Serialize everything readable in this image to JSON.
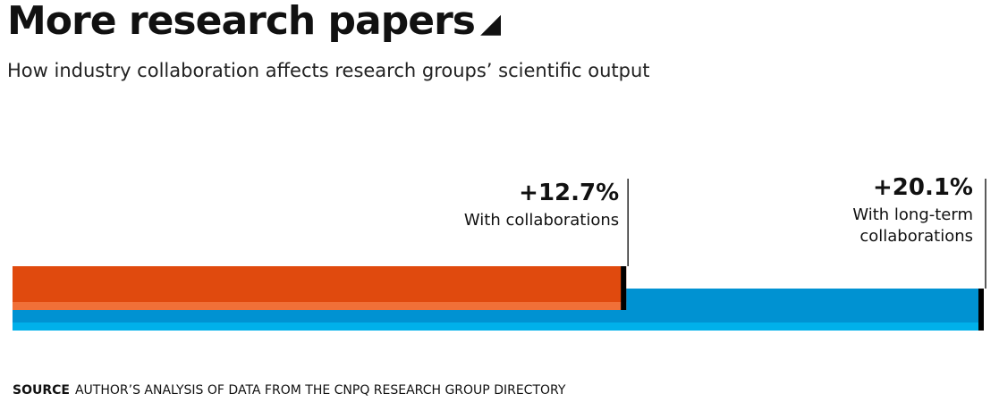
{
  "header": {
    "title": "More research papers",
    "title_icon": "triangle-icon",
    "subtitle": "How industry collaboration affects research groups’ scientific output"
  },
  "source": {
    "label": "SOURCE",
    "text": "AUTHOR’S ANALYSIS OF DATA FROM THE CNPQ RESEARCH GROUP DIRECTORY"
  },
  "colors": {
    "collaborations": "#e04a0e",
    "collaborations_light": "#f07038",
    "long_term": "#0092d2",
    "long_term_light": "#00b0ea",
    "marker": "#000000"
  },
  "chart_data": {
    "type": "bar",
    "orientation": "horizontal",
    "title": "More research papers",
    "subtitle": "How industry collaboration affects research groups’ scientific output",
    "unit": "%",
    "xlim": [
      0,
      20.1
    ],
    "series": [
      {
        "name": "With collaborations",
        "value": 12.7,
        "label": "+12.7%",
        "color": "#e04a0e"
      },
      {
        "name": "With long-term collaborations",
        "value": 20.1,
        "label": "+20.1%",
        "color": "#0092d2"
      }
    ]
  }
}
